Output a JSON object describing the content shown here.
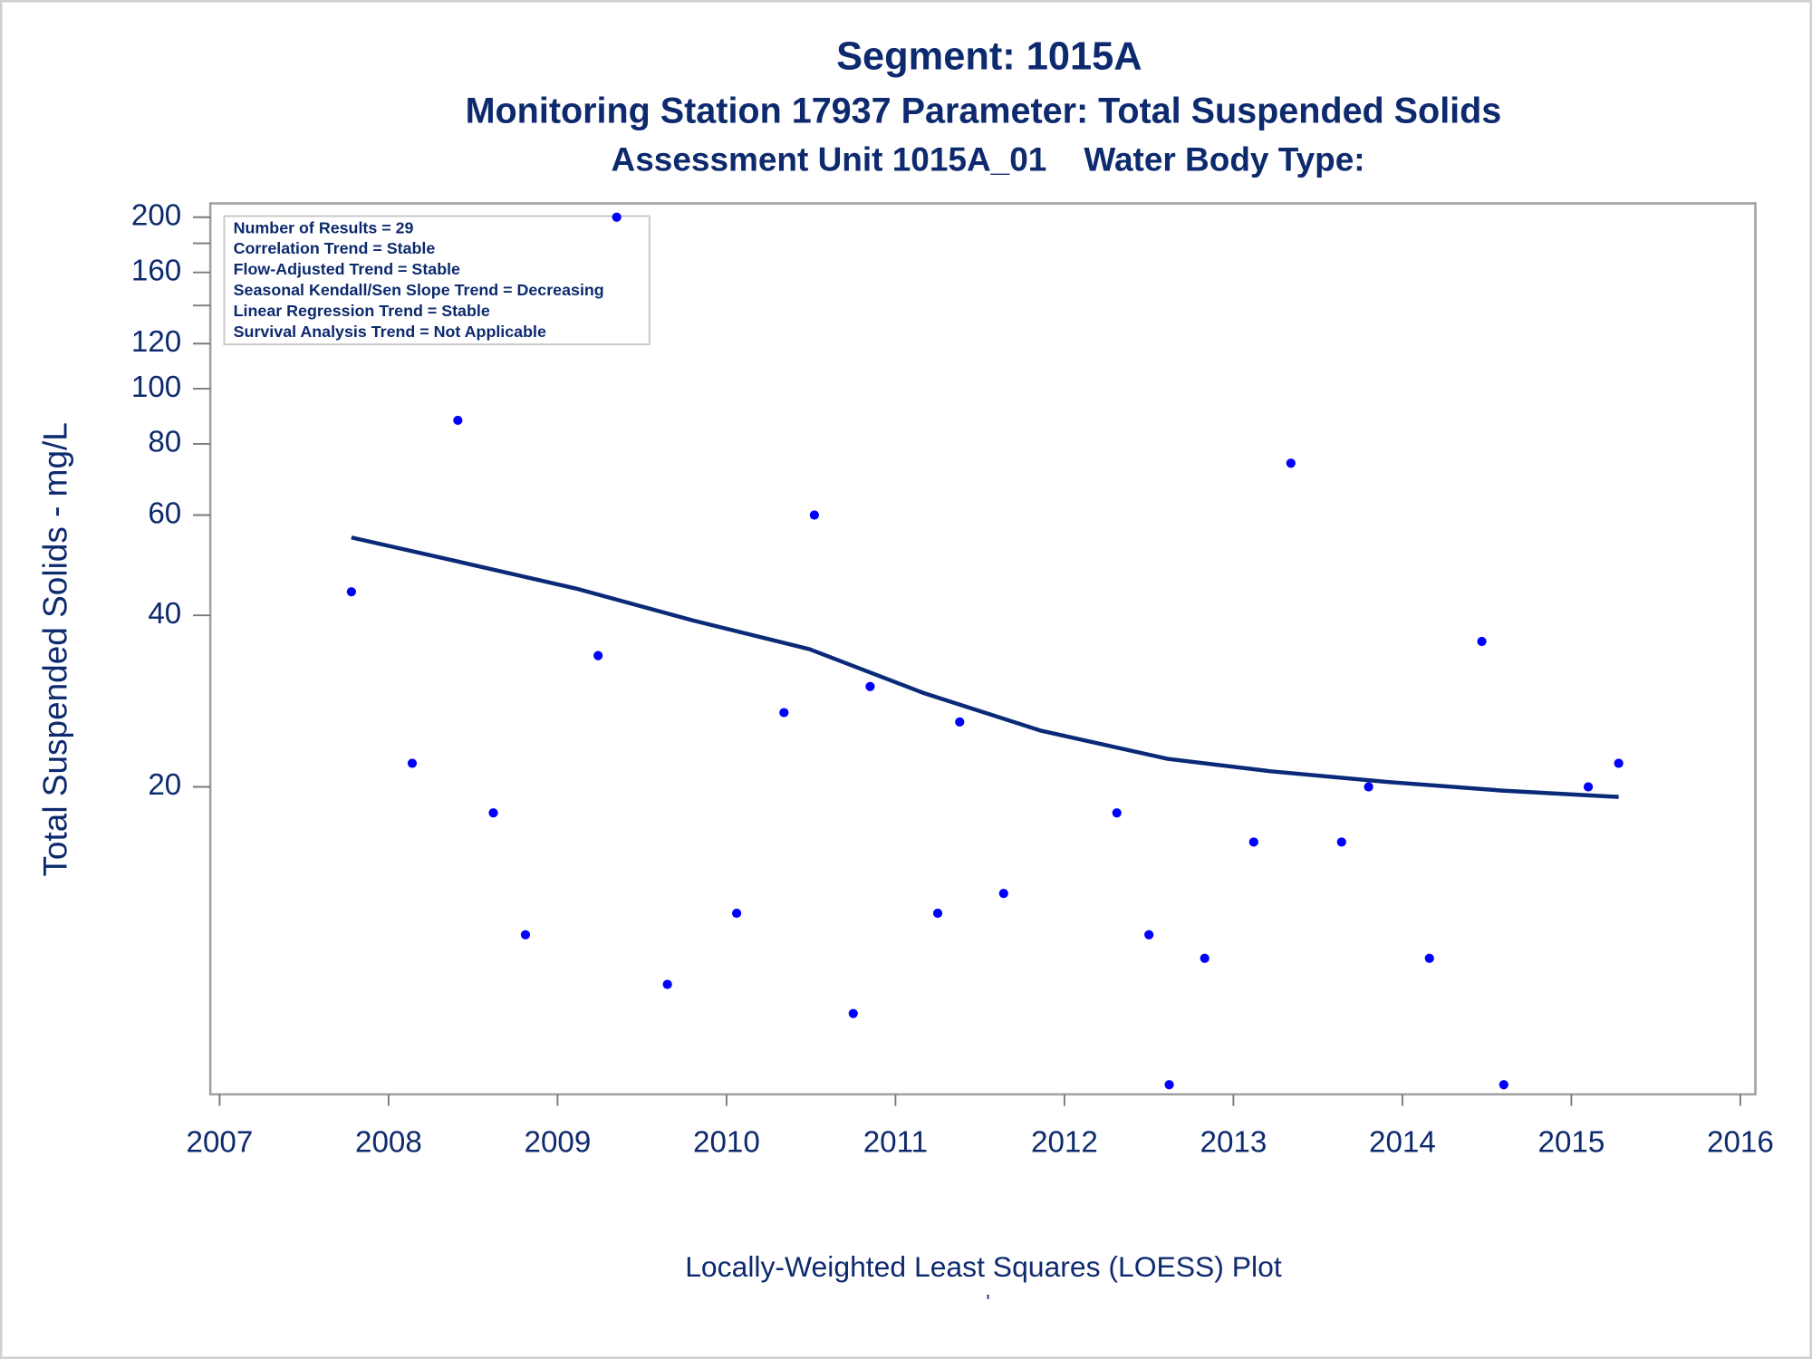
{
  "chart_data": {
    "type": "scatter",
    "title": "Segment: 1015A",
    "subtitle": "Monitoring Station 17937 Parameter: Total Suspended Solids",
    "subtitle2": "Assessment Unit 1015A_01    Water Body Type:",
    "y_label": "Total Suspended Solids - mg/L",
    "footnote": "Locally-Weighted Least Squares (LOESS) Plot",
    "footnote2": "'",
    "annotations": [
      "Number of Results = 29",
      "Correlation Trend = Stable",
      "Flow-Adjusted Trend = Stable",
      "Seasonal Kendall/Sen Slope Trend = Decreasing",
      "Linear Regression Trend = Stable",
      "Survival Analysis Trend = Not Applicable"
    ],
    "y_log": true,
    "xlim": [
      2006.945,
      2016.089
    ],
    "ylim": [
      5.77,
      211.5
    ],
    "xticks": [
      2007,
      2008,
      2009,
      2010,
      2011,
      2012,
      2013,
      2014,
      2015,
      2016
    ],
    "yticks": [
      20,
      40,
      60,
      80,
      100,
      120,
      160,
      200
    ],
    "yminor": [
      140,
      180
    ],
    "points": {
      "color": "#0000ff",
      "x": [
        2007.78,
        2008.14,
        2008.41,
        2008.62,
        2008.81,
        2009.24,
        2009.35,
        2009.65,
        2010.06,
        2010.34,
        2010.52,
        2010.75,
        2010.85,
        2011.25,
        2011.38,
        2011.64,
        2012.31,
        2012.5,
        2012.62,
        2012.83,
        2013.12,
        2013.34,
        2013.64,
        2013.8,
        2014.16,
        2014.47,
        2014.6,
        2015.1,
        2015.28
      ],
      "values": [
        44,
        22,
        88,
        18,
        11,
        34,
        200,
        9,
        12,
        27,
        60,
        8,
        30,
        12,
        26,
        13,
        18,
        11,
        6,
        10,
        16,
        74,
        16,
        20,
        10,
        36,
        6,
        20,
        22
      ]
    },
    "loess": {
      "color": "#0a2a78",
      "x": [
        2007.78,
        2008.44,
        2009.12,
        2009.8,
        2010.49,
        2011.17,
        2011.86,
        2012.61,
        2013.22,
        2013.91,
        2014.59,
        2015.28
      ],
      "values": [
        54.8,
        49.5,
        44.5,
        39.2,
        34.9,
        29.2,
        25.1,
        22.4,
        21.3,
        20.4,
        19.7,
        19.2
      ]
    }
  }
}
